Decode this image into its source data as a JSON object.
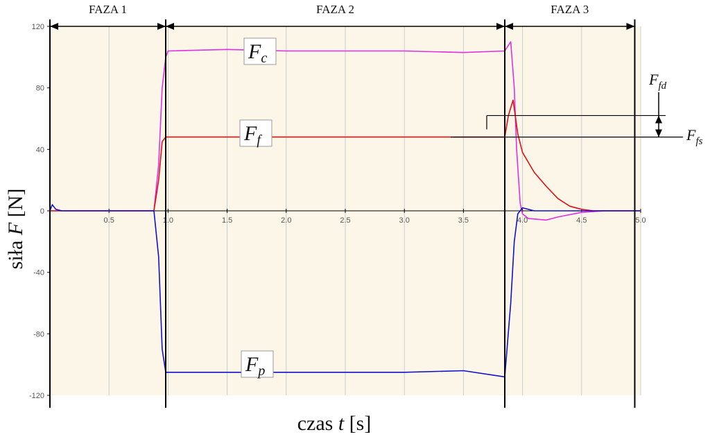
{
  "chart_data": {
    "type": "line",
    "xlabel_prefix": "czas ",
    "xlabel_var": "t",
    "xlabel_suffix": " [s]",
    "ylabel_prefix": "siła ",
    "ylabel_var": "F",
    "ylabel_suffix": " [N]",
    "xlim": [
      0,
      5.0
    ],
    "ylim": [
      -120,
      120
    ],
    "xticks": [
      0.5,
      1.0,
      1.5,
      2.0,
      2.5,
      3.0,
      3.5,
      4.0,
      4.5,
      5.0
    ],
    "xtick_labels": [
      "0.5",
      "1.0",
      "1.5",
      "2.0",
      "2.5",
      "3.0",
      "3.5",
      "4.0",
      "4.5",
      "5.0"
    ],
    "yticks": [
      120,
      80,
      40,
      0,
      -40,
      -80,
      -120
    ],
    "ytick_labels": [
      "120",
      "80",
      "40",
      "0",
      "-40",
      "-80",
      "-120"
    ],
    "grid": true,
    "colors": {
      "plot_bg": "#fbf6e8",
      "grid": "#cccccc",
      "Fc": "#e030e0",
      "Ff": "#dd1111",
      "Fp": "#1111cc",
      "annot": "#000000"
    },
    "phases": [
      {
        "label": "FAZA 1",
        "x_start": 0,
        "x_end": 0.98
      },
      {
        "label": "FAZA 2",
        "x_start": 0.98,
        "x_end": 3.85
      },
      {
        "label": "FAZA 3",
        "x_start": 3.85,
        "x_end": 4.95
      }
    ],
    "series": [
      {
        "key": "Fc",
        "label_main": "F",
        "label_sub": "c",
        "x": [
          0,
          0.88,
          0.92,
          0.95,
          0.98,
          1.0,
          1.5,
          2.0,
          2.5,
          3.0,
          3.5,
          3.85,
          3.9,
          3.93,
          3.95,
          3.98,
          4.0,
          4.05,
          4.2,
          4.3,
          4.5,
          4.7,
          5.0
        ],
        "y": [
          0,
          0,
          30,
          80,
          100,
          104,
          105,
          104,
          104,
          104,
          103,
          104,
          110,
          80,
          40,
          5,
          -2,
          -5,
          -6,
          -4,
          -1,
          0,
          0
        ]
      },
      {
        "key": "Ff",
        "label_main": "F",
        "label_sub": "f",
        "x": [
          0,
          0.88,
          0.92,
          0.95,
          0.98,
          1.0,
          1.5,
          2.0,
          2.5,
          3.0,
          3.5,
          3.85,
          3.88,
          3.92,
          3.96,
          4.0,
          4.1,
          4.2,
          4.3,
          4.4,
          4.5,
          4.6,
          5.0
        ],
        "y": [
          0,
          0,
          20,
          45,
          48,
          48,
          48,
          48,
          48,
          48,
          48,
          48,
          62,
          72,
          50,
          38,
          25,
          16,
          8,
          3,
          1,
          0,
          0
        ]
      },
      {
        "key": "Fp",
        "label_main": "F",
        "label_sub": "p",
        "x": [
          0,
          0.02,
          0.05,
          0.1,
          0.88,
          0.92,
          0.95,
          0.98,
          1.0,
          1.5,
          2.0,
          2.5,
          3.0,
          3.5,
          3.85,
          3.9,
          3.93,
          3.96,
          4.0,
          4.1,
          4.3,
          4.5,
          5.0
        ],
        "y": [
          0,
          4,
          1,
          0,
          0,
          -30,
          -90,
          -105,
          -105,
          -105,
          -105,
          -105,
          -105,
          -104,
          -108,
          -60,
          -20,
          -2,
          2,
          0,
          0,
          0,
          0
        ]
      }
    ],
    "annotations": [
      {
        "label_main": "F",
        "label_sub": "fd",
        "y_from": 48,
        "y_to": 62
      },
      {
        "label_main": "F",
        "label_sub": "fs",
        "y": 48
      }
    ]
  }
}
